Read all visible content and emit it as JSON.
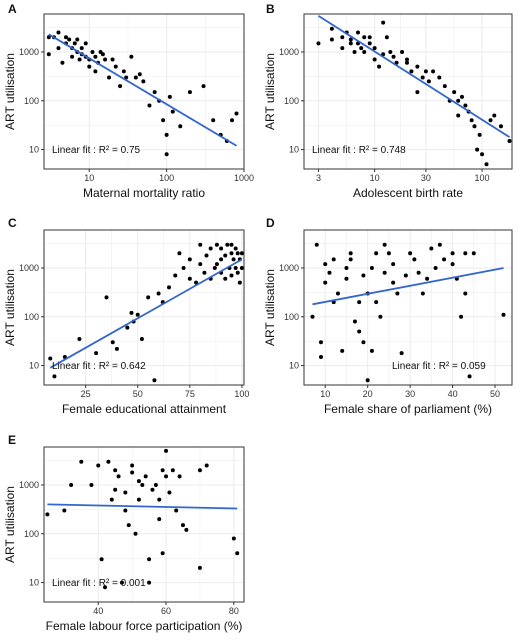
{
  "styles": {
    "point_color": "#000000",
    "line_color": "#3366cc",
    "grid_color": "#ebebeb",
    "border_color": "#333333"
  },
  "chart_data": [
    {
      "type": "scatter",
      "panel": "A",
      "xscale": "log",
      "yscale": "log",
      "xlabel": "Maternal mortality ratio",
      "ylabel": "ART utilisation",
      "xlim": [
        2.6,
        1000
      ],
      "ylim": [
        4,
        6000
      ],
      "xticks": [
        10,
        100,
        1000
      ],
      "xtick_labels": [
        "10",
        "100",
        "1000"
      ],
      "yticks": [
        10,
        100,
        1000
      ],
      "ytick_labels": [
        "10",
        "100",
        "1000"
      ],
      "fit_text": "Linear fit :  R² = 0.75",
      "fit_line": {
        "x": [
          3,
          800
        ],
        "y": [
          2300,
          12
        ]
      },
      "x": [
        3,
        3,
        3.5,
        4,
        4,
        4.5,
        5,
        5,
        5.5,
        6,
        6,
        6.5,
        7,
        7,
        7.5,
        8,
        8,
        9,
        9,
        10,
        10,
        11,
        12,
        12,
        13,
        14,
        15,
        16,
        18,
        20,
        22,
        25,
        28,
        30,
        35,
        40,
        45,
        50,
        60,
        70,
        80,
        90,
        100,
        100,
        110,
        120,
        150,
        200,
        300,
        400,
        500,
        600,
        700,
        800
      ],
      "y": [
        2000,
        900,
        2000,
        2500,
        1200,
        600,
        1500,
        2000,
        1800,
        1200,
        800,
        1500,
        1800,
        1000,
        700,
        900,
        1200,
        1500,
        800,
        700,
        500,
        1000,
        400,
        800,
        600,
        1000,
        900,
        700,
        300,
        700,
        500,
        200,
        400,
        300,
        800,
        300,
        350,
        250,
        80,
        150,
        100,
        40,
        20,
        8,
        120,
        60,
        30,
        150,
        200,
        40,
        20,
        15,
        40,
        55
      ]
    },
    {
      "type": "scatter",
      "panel": "B",
      "xscale": "log",
      "yscale": "log",
      "xlabel": "Adolescent birth rate",
      "ylabel": "ART utilisation",
      "xlim": [
        2.2,
        190
      ],
      "ylim": [
        4,
        6000
      ],
      "xticks": [
        3,
        10,
        30,
        100
      ],
      "xtick_labels": [
        "3",
        "10",
        "30",
        "100"
      ],
      "yticks": [
        10,
        100,
        1000
      ],
      "ytick_labels": [
        "10",
        "100",
        "1000"
      ],
      "fit_text": "Linear fit :  R² = 0.748",
      "fit_line": {
        "x": [
          3,
          180
        ],
        "y": [
          5500,
          18
        ]
      },
      "x": [
        3,
        4,
        4,
        5,
        5,
        5.5,
        6,
        6,
        6.5,
        7,
        7,
        7.5,
        8,
        8,
        9,
        9,
        10,
        10,
        11,
        12,
        12,
        13,
        14,
        15,
        16,
        18,
        20,
        20,
        22,
        25,
        25,
        28,
        30,
        32,
        35,
        40,
        45,
        50,
        55,
        60,
        60,
        65,
        70,
        75,
        80,
        85,
        90,
        95,
        100,
        110,
        120,
        130,
        150,
        180
      ],
      "y": [
        1500,
        3000,
        1800,
        2000,
        1200,
        2500,
        1800,
        1500,
        1000,
        2500,
        1500,
        1200,
        1000,
        2000,
        2000,
        1500,
        700,
        1200,
        500,
        4000,
        900,
        2000,
        1000,
        800,
        600,
        1000,
        700,
        600,
        400,
        500,
        150,
        300,
        400,
        250,
        400,
        300,
        200,
        100,
        150,
        50,
        100,
        120,
        80,
        60,
        40,
        30,
        10,
        20,
        8,
        5,
        40,
        50,
        30,
        15
      ]
    },
    {
      "type": "scatter",
      "panel": "C",
      "xscale": "linear",
      "yscale": "log",
      "xlabel": "Female educational attainment",
      "ylabel": "ART utilisation",
      "xlim": [
        5,
        101
      ],
      "ylim": [
        4,
        6000
      ],
      "xticks": [
        25,
        50,
        75,
        100
      ],
      "xtick_labels": [
        "25",
        "50",
        "75",
        "100"
      ],
      "yticks": [
        10,
        100,
        1000
      ],
      "ytick_labels": [
        "10",
        "100",
        "1000"
      ],
      "fit_text": "Linear fit :  R² = 0.642",
      "fit_line": {
        "x": [
          8,
          100
        ],
        "y": [
          9,
          1500
        ]
      },
      "x": [
        8,
        10,
        15,
        22,
        30,
        35,
        38,
        40,
        45,
        47,
        48,
        50,
        52,
        55,
        58,
        60,
        62,
        65,
        68,
        70,
        72,
        75,
        75,
        78,
        80,
        80,
        82,
        83,
        85,
        85,
        87,
        88,
        88,
        90,
        90,
        90,
        92,
        92,
        93,
        94,
        95,
        95,
        95,
        96,
        97,
        97,
        98,
        98,
        99,
        99,
        100,
        100
      ],
      "y": [
        14,
        6,
        15,
        35,
        18,
        250,
        30,
        22,
        60,
        120,
        80,
        110,
        35,
        250,
        5,
        300,
        200,
        400,
        700,
        2000,
        1000,
        600,
        1500,
        500,
        3000,
        1200,
        800,
        1800,
        2500,
        600,
        1000,
        3000,
        1200,
        2500,
        800,
        1500,
        600,
        1800,
        3000,
        1000,
        2000,
        700,
        3000,
        1500,
        2500,
        1000,
        2000,
        800,
        1500,
        500,
        2000,
        1000
      ]
    },
    {
      "type": "scatter",
      "panel": "D",
      "xscale": "linear",
      "yscale": "log",
      "xlabel": "Female share of parliament (%)",
      "ylabel": "ART utilisation",
      "xlim": [
        5,
        54
      ],
      "ylim": [
        4,
        6000
      ],
      "xticks": [
        10,
        20,
        30,
        40,
        50
      ],
      "xtick_labels": [
        "10",
        "20",
        "30",
        "40",
        "50"
      ],
      "yticks": [
        10,
        100,
        1000
      ],
      "ytick_labels": [
        "10",
        "100",
        "1000"
      ],
      "fit_text": "Linear fit :  R² = 0.059",
      "fit_line": {
        "x": [
          7,
          52
        ],
        "y": [
          180,
          1000
        ]
      },
      "x": [
        7,
        8,
        9,
        9,
        10,
        10,
        11,
        12,
        12,
        13,
        14,
        15,
        15,
        16,
        16,
        17,
        18,
        18,
        19,
        19,
        20,
        20,
        21,
        21,
        22,
        22,
        23,
        24,
        24,
        25,
        26,
        26,
        27,
        28,
        29,
        30,
        31,
        32,
        33,
        34,
        35,
        36,
        37,
        38,
        40,
        40,
        41,
        42,
        43,
        43,
        44,
        45,
        52
      ],
      "y": [
        100,
        3000,
        30,
        15,
        1200,
        500,
        800,
        1500,
        200,
        300,
        20,
        1000,
        600,
        2000,
        1500,
        80,
        50,
        200,
        30,
        700,
        300,
        5,
        1000,
        20,
        2000,
        200,
        100,
        800,
        3000,
        2000,
        500,
        1200,
        300,
        18,
        700,
        2000,
        1500,
        800,
        300,
        600,
        2500,
        1000,
        3000,
        1500,
        2000,
        1200,
        600,
        100,
        300,
        2000,
        6,
        2000,
        110
      ]
    },
    {
      "type": "scatter",
      "panel": "E",
      "xscale": "linear",
      "yscale": "log",
      "xlabel": "Female labour force participation (%)",
      "ylabel": "ART utilisation",
      "xlim": [
        24,
        83
      ],
      "ylim": [
        4,
        6000
      ],
      "xticks": [
        40,
        60,
        80
      ],
      "xtick_labels": [
        "40",
        "60",
        "80"
      ],
      "yticks": [
        10,
        100,
        1000
      ],
      "ytick_labels": [
        "10",
        "100",
        "1000"
      ],
      "fit_text": "Linear fit :  R² = 0.001",
      "fit_line": {
        "x": [
          25,
          81
        ],
        "y": [
          400,
          330
        ]
      },
      "x": [
        25,
        30,
        32,
        35,
        38,
        40,
        41,
        42,
        43,
        44,
        45,
        45,
        46,
        47,
        48,
        48,
        49,
        50,
        50,
        51,
        52,
        52,
        53,
        54,
        55,
        55,
        56,
        57,
        58,
        58,
        59,
        59,
        60,
        60,
        61,
        62,
        63,
        64,
        65,
        66,
        70,
        70,
        72,
        80,
        81
      ],
      "y": [
        250,
        300,
        1000,
        3000,
        1000,
        2500,
        30,
        8,
        3000,
        500,
        2000,
        800,
        1500,
        10,
        700,
        300,
        150,
        2500,
        1800,
        100,
        500,
        1200,
        1000,
        1500,
        30,
        10,
        800,
        1000,
        500,
        200,
        40,
        2000,
        5000,
        1500,
        700,
        2000,
        300,
        1500,
        150,
        120,
        20,
        2000,
        2500,
        80,
        40
      ]
    }
  ]
}
